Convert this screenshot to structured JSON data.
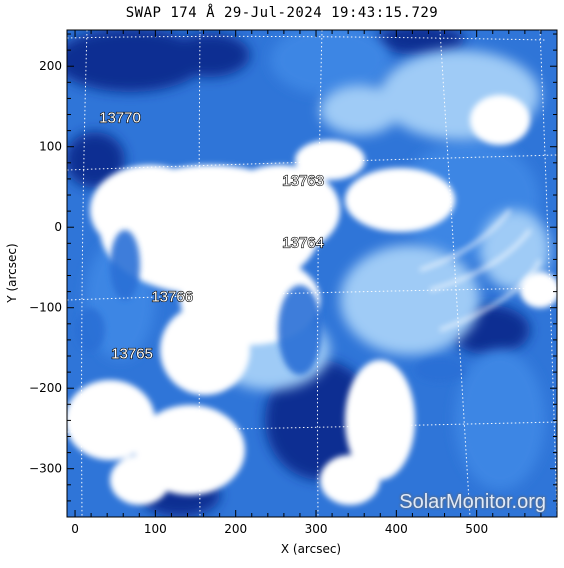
{
  "title": "SWAP 174 Å 29-Jul-2024 19:43:15.729",
  "watermark": "SolarMonitor.org",
  "axes": {
    "xlabel": "X (arcsec)",
    "ylabel": "Y (arcsec)",
    "xlim": [
      -10,
      600
    ],
    "ylim": [
      -360,
      245
    ],
    "xticks": [
      0,
      100,
      200,
      300,
      400,
      500
    ],
    "yticks": [
      200,
      100,
      0,
      -100,
      -200,
      -300
    ],
    "xtick_labels": [
      "0",
      "100",
      "200",
      "300",
      "400",
      "500"
    ],
    "ytick_labels": [
      "200",
      "100",
      "0",
      "−100",
      "−200",
      "−300"
    ]
  },
  "regions": [
    {
      "label": "13770",
      "x": 30,
      "y": 130
    },
    {
      "label": "13763",
      "x": 258,
      "y": 52
    },
    {
      "label": "13764",
      "x": 258,
      "y": -25
    },
    {
      "label": "13766",
      "x": 95,
      "y": -92
    },
    {
      "label": "13765",
      "x": 45,
      "y": -163
    }
  ],
  "colors": {
    "dark": "#0a2a8c",
    "mid": "#2b6fd6",
    "light": "#8cc0f4",
    "bright": "#ffffff"
  }
}
